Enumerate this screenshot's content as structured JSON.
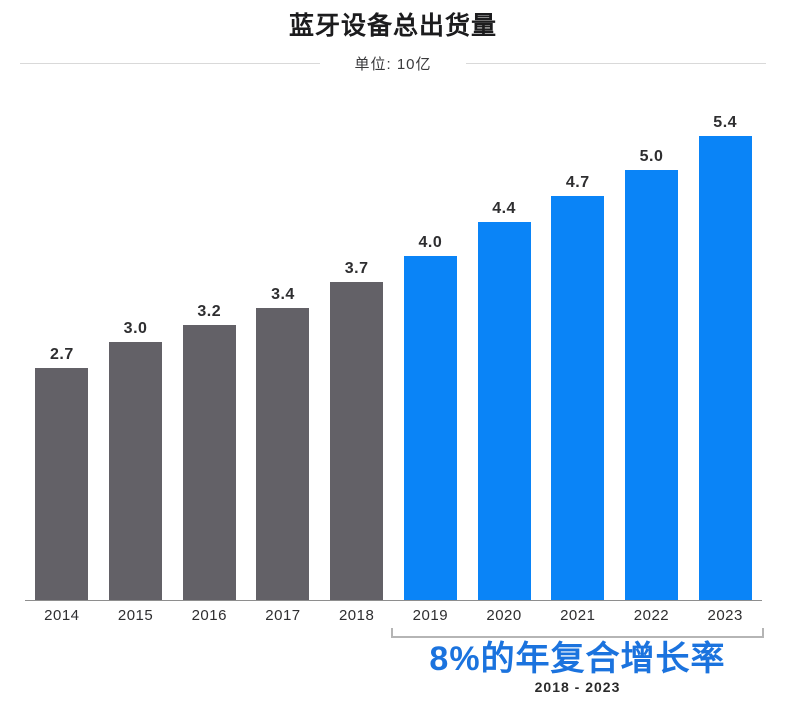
{
  "header": {
    "title": "蓝牙设备总出货量",
    "unit_label": "单位: 10亿"
  },
  "chart_data": {
    "type": "bar",
    "title": "蓝牙设备总出货量",
    "unit": "10亿",
    "categories": [
      "2014",
      "2015",
      "2016",
      "2017",
      "2018",
      "2019",
      "2020",
      "2021",
      "2022",
      "2023"
    ],
    "values": [
      2.7,
      3.0,
      3.2,
      3.4,
      3.7,
      4.0,
      4.4,
      4.7,
      5.0,
      5.4
    ],
    "value_labels": [
      "2.7",
      "3.0",
      "3.2",
      "3.4",
      "3.7",
      "4.0",
      "4.4",
      "4.7",
      "5.0",
      "5.4"
    ],
    "groups": [
      "past",
      "past",
      "past",
      "past",
      "past",
      "forecast",
      "forecast",
      "forecast",
      "forecast",
      "forecast"
    ],
    "group_colors": {
      "past": "#636167",
      "forecast": "#0A84F7"
    },
    "ylim": [
      0,
      5.8
    ],
    "grid": false,
    "legend": "none",
    "xlabel": "",
    "ylabel": ""
  },
  "annotation": {
    "bracket_start_year": "2019",
    "bracket_end_year": "2023",
    "cagr_label": "8%的年复合增长率",
    "period_label": "2018 - 2023",
    "cagr_color": "#1B73DE",
    "bracket_color": "#B5B5B5"
  }
}
